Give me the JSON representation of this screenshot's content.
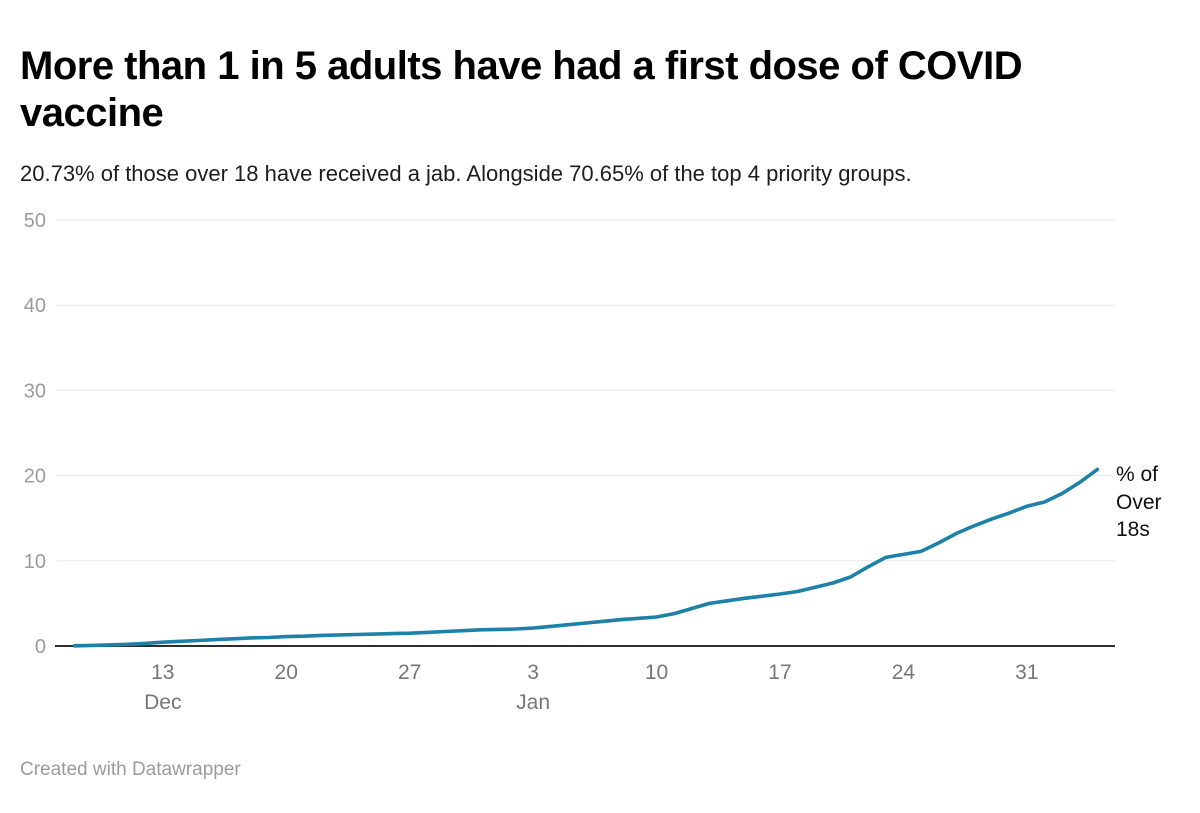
{
  "header": {
    "title": "More than 1 in 5 adults have had a first dose of COVID vaccine",
    "subtitle": "20.73% of those over 18 have received a jab. Alongside 70.65% of the top 4 priority groups."
  },
  "footer": {
    "attribution": "Created with Datawrapper"
  },
  "colors": {
    "line": "#1d81a8",
    "grid": "#e8e8e8",
    "axis": "#2e2e2e",
    "y_tick_label": "#9b9b9b",
    "x_tick_label": "#767676",
    "background": "#ffffff"
  },
  "chart_data": {
    "type": "line",
    "title": "More than 1 in 5 adults have had a first dose of COVID vaccine",
    "subtitle": "20.73% of those over 18 have received a jab. Alongside 70.65% of the top 4 priority groups.",
    "ylabel": "",
    "xlabel": "",
    "grid": "horizontal",
    "legend_position": "right-of-line-end",
    "ylim": [
      0,
      50
    ],
    "y_ticks": [
      0,
      10,
      20,
      30,
      40,
      50
    ],
    "xlim": [
      "2020-12-07",
      "2021-02-05"
    ],
    "x_ticks": [
      {
        "date": "2020-12-13",
        "label": "13",
        "month": "Dec"
      },
      {
        "date": "2020-12-20",
        "label": "20",
        "month": ""
      },
      {
        "date": "2020-12-27",
        "label": "27",
        "month": ""
      },
      {
        "date": "2021-01-03",
        "label": "3",
        "month": "Jan"
      },
      {
        "date": "2021-01-10",
        "label": "10",
        "month": ""
      },
      {
        "date": "2021-01-17",
        "label": "17",
        "month": ""
      },
      {
        "date": "2021-01-24",
        "label": "24",
        "month": ""
      },
      {
        "date": "2021-01-31",
        "label": "31",
        "month": ""
      }
    ],
    "series": [
      {
        "name": "% of Over 18s",
        "color": "#1d81a8",
        "points": [
          [
            "2020-12-08",
            0.02
          ],
          [
            "2020-12-09",
            0.07
          ],
          [
            "2020-12-10",
            0.13
          ],
          [
            "2020-12-11",
            0.2
          ],
          [
            "2020-12-12",
            0.3
          ],
          [
            "2020-12-13",
            0.45
          ],
          [
            "2020-12-14",
            0.55
          ],
          [
            "2020-12-15",
            0.65
          ],
          [
            "2020-12-16",
            0.75
          ],
          [
            "2020-12-17",
            0.85
          ],
          [
            "2020-12-18",
            0.95
          ],
          [
            "2020-12-19",
            1.0
          ],
          [
            "2020-12-20",
            1.1
          ],
          [
            "2020-12-21",
            1.15
          ],
          [
            "2020-12-22",
            1.25
          ],
          [
            "2020-12-23",
            1.3
          ],
          [
            "2020-12-24",
            1.35
          ],
          [
            "2020-12-25",
            1.4
          ],
          [
            "2020-12-26",
            1.45
          ],
          [
            "2020-12-27",
            1.5
          ],
          [
            "2020-12-28",
            1.6
          ],
          [
            "2020-12-29",
            1.7
          ],
          [
            "2020-12-30",
            1.8
          ],
          [
            "2020-12-31",
            1.9
          ],
          [
            "2021-01-01",
            1.95
          ],
          [
            "2021-01-02",
            2.0
          ],
          [
            "2021-01-03",
            2.1
          ],
          [
            "2021-01-04",
            2.3
          ],
          [
            "2021-01-05",
            2.5
          ],
          [
            "2021-01-06",
            2.7
          ],
          [
            "2021-01-07",
            2.9
          ],
          [
            "2021-01-08",
            3.1
          ],
          [
            "2021-01-09",
            3.25
          ],
          [
            "2021-01-10",
            3.4
          ],
          [
            "2021-01-11",
            3.8
          ],
          [
            "2021-01-12",
            4.4
          ],
          [
            "2021-01-13",
            5.0
          ],
          [
            "2021-01-14",
            5.3
          ],
          [
            "2021-01-15",
            5.6
          ],
          [
            "2021-01-16",
            5.85
          ],
          [
            "2021-01-17",
            6.1
          ],
          [
            "2021-01-18",
            6.4
          ],
          [
            "2021-01-19",
            6.9
          ],
          [
            "2021-01-20",
            7.4
          ],
          [
            "2021-01-21",
            8.1
          ],
          [
            "2021-01-22",
            9.3
          ],
          [
            "2021-01-23",
            10.4
          ],
          [
            "2021-01-24",
            10.75
          ],
          [
            "2021-01-25",
            11.1
          ],
          [
            "2021-01-26",
            12.1
          ],
          [
            "2021-01-27",
            13.2
          ],
          [
            "2021-01-28",
            14.1
          ],
          [
            "2021-01-29",
            14.9
          ],
          [
            "2021-01-30",
            15.6
          ],
          [
            "2021-01-31",
            16.4
          ],
          [
            "2021-02-01",
            16.9
          ],
          [
            "2021-02-02",
            17.9
          ],
          [
            "2021-02-03",
            19.2
          ],
          [
            "2021-02-04",
            20.73
          ]
        ]
      }
    ]
  }
}
